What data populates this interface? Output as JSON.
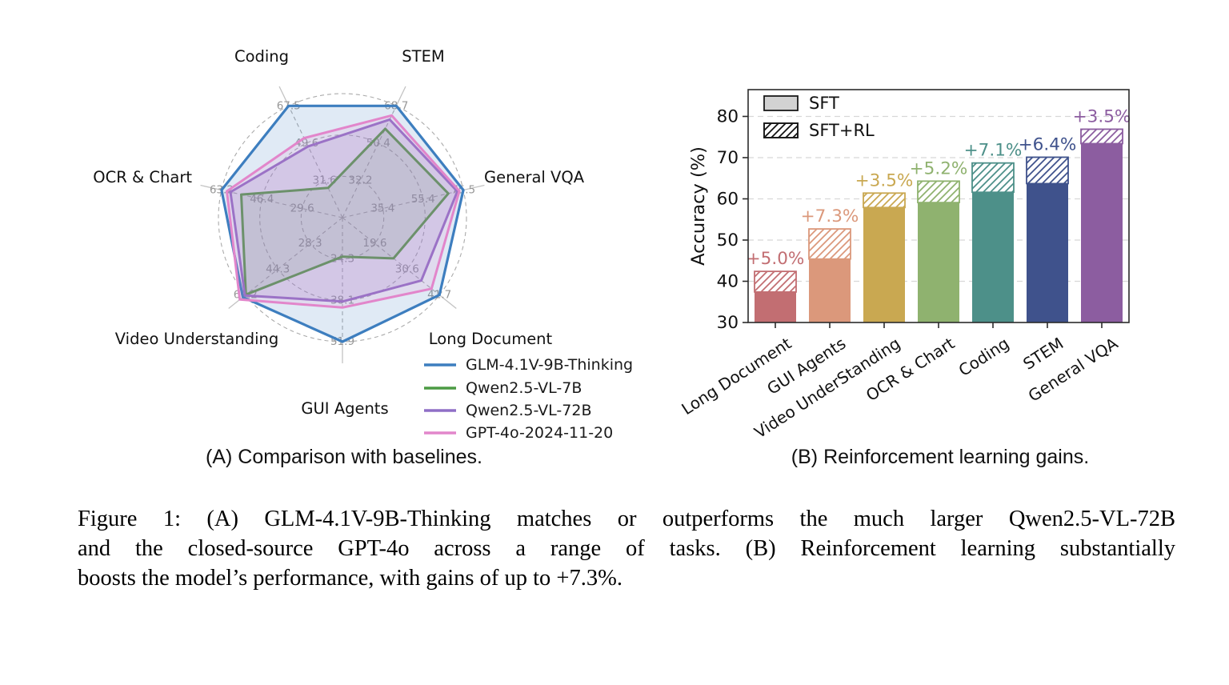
{
  "figure": {
    "panel_a_caption": "(A) Comparison with baselines.",
    "panel_b_caption": "(B) Reinforcement learning gains.",
    "caption_lines": [
      "Figure 1: (A) GLM-4.1V-9B-Thinking matches or outperforms the much larger Qwen2.5-VL-72B",
      "and the closed-source GPT-4o across a range of tasks. (B) Reinforcement learning substantially",
      "boosts the model’s performance, with gains of up to +7.3%."
    ]
  },
  "chart_data": [
    {
      "type": "radar",
      "panel": "A",
      "categories": [
        "Coding",
        "STEM",
        "General VQA",
        "Long Document",
        "GUI Agents",
        "Video Understanding",
        "OCR & Chart"
      ],
      "axis_tick_labels": [
        [
          31.6,
          49.6,
          67.5
        ],
        [
          32.2,
          50.4,
          68.7
        ],
        [
          35.4,
          55.4,
          75.5
        ],
        [
          19.6,
          30.6,
          41.7
        ],
        [
          24.3,
          38.1,
          51.9
        ],
        [
          28.3,
          44.3,
          60.2
        ],
        [
          29.6,
          46.4,
          63.2
        ]
      ],
      "grid": "dashed concentric rings at each tick level, dashed spokes",
      "legend_position": "lower right",
      "values_are_estimates": true,
      "series": [
        {
          "name": "GLM-4.1V-9B-Thinking",
          "color": "#3d7ebf",
          "values": [
            67.5,
            68.7,
            75.5,
            41.7,
            51.9,
            61.5,
            63.2
          ]
        },
        {
          "name": "Qwen2.5-VL-7B",
          "color": "#4c9b44",
          "values": [
            28.0,
            57.5,
            68.0,
            26.0,
            23.5,
            60.0,
            55.0
          ]
        },
        {
          "name": "Qwen2.5-VL-72B",
          "color": "#8f6fc6",
          "values": [
            48.0,
            62.0,
            72.5,
            35.5,
            38.5,
            60.5,
            59.5
          ]
        },
        {
          "name": "GPT-4o-2024-11-20",
          "color": "#e286cb",
          "values": [
            52.0,
            64.0,
            73.5,
            39.0,
            40.5,
            63.0,
            61.0
          ]
        }
      ]
    },
    {
      "type": "bar",
      "panel": "B",
      "categories": [
        "Long Document",
        "GUI Agents",
        "Video UnderStanding",
        "OCR & Chart",
        "Coding",
        "STEM",
        "General VQA"
      ],
      "series": [
        {
          "name": "SFT",
          "values": [
            37.4,
            45.4,
            57.9,
            59.1,
            61.6,
            63.7,
            73.4
          ]
        },
        {
          "name": "SFT+RL",
          "values": [
            42.4,
            52.7,
            61.4,
            64.3,
            68.7,
            70.1,
            76.9
          ]
        }
      ],
      "gain_labels": [
        "+5.0%",
        "+7.3%",
        "+3.5%",
        "+5.2%",
        "+7.1%",
        "+6.4%",
        "+3.5%"
      ],
      "bar_colors": [
        "#c26e72",
        "#db987b",
        "#c9a851",
        "#8fb26f",
        "#4d9089",
        "#3f528c",
        "#8c5da0"
      ],
      "legend": [
        "SFT",
        "SFT+RL"
      ],
      "legend_position": "upper left",
      "ylabel": "Accuracy (%)",
      "yticks": [
        30,
        40,
        50,
        60,
        70,
        80
      ],
      "ylim": [
        30,
        86.5
      ],
      "grid": "horizontal dashed gridlines"
    }
  ]
}
